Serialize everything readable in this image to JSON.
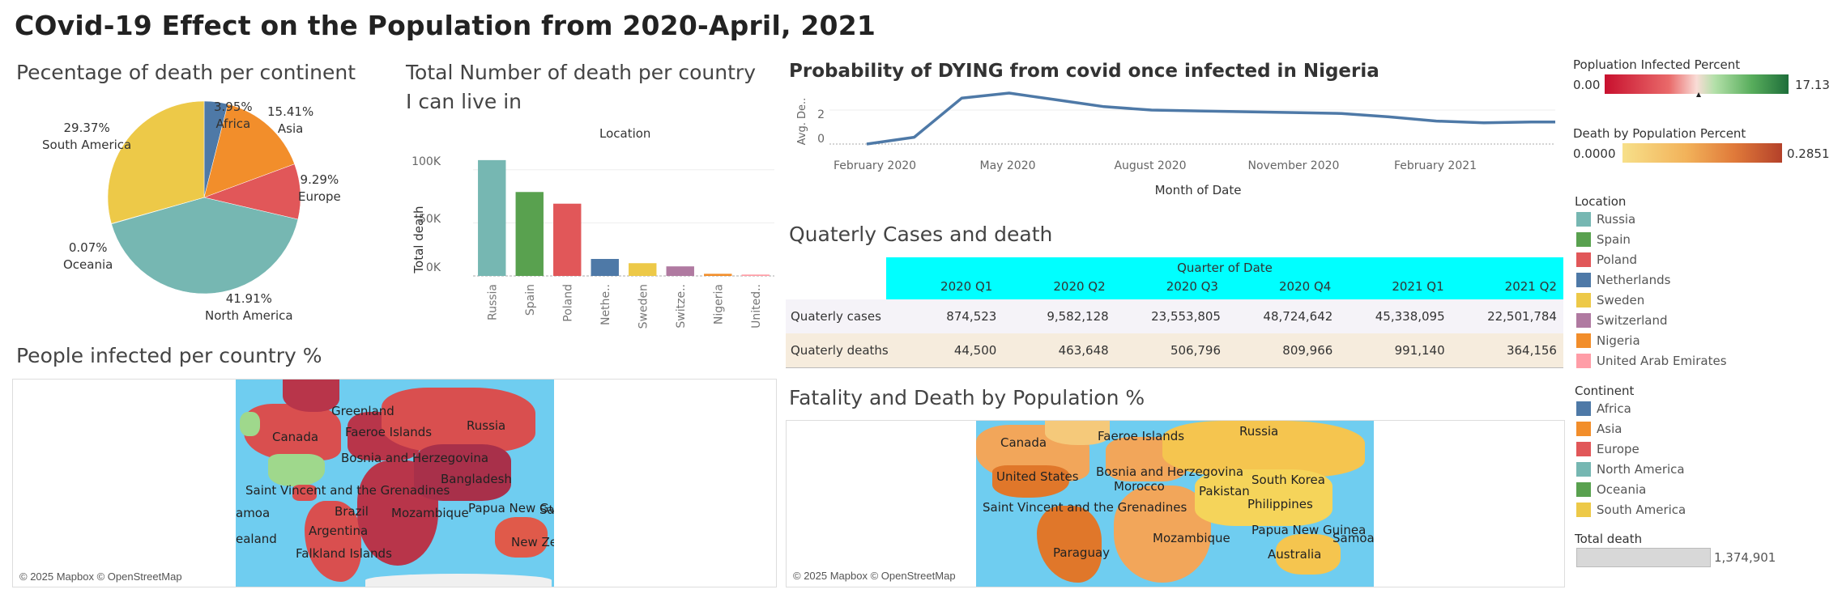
{
  "main_title": "COvid-19 Effect on the Population from 2020-April, 2021",
  "pie": {
    "title": "Pecentage of death per continent",
    "slices": [
      {
        "name": "Africa",
        "value": 3.95,
        "label": "3.95%",
        "color": "#4e79a7"
      },
      {
        "name": "Asia",
        "value": 15.41,
        "label": "15.41%",
        "color": "#f28e2b"
      },
      {
        "name": "Europe",
        "value": 9.29,
        "label": "9.29%",
        "color": "#e15759"
      },
      {
        "name": "North America",
        "value": 41.91,
        "label": "41.91%",
        "color": "#76b7b2"
      },
      {
        "name": "Oceania",
        "value": 0.07,
        "label": "0.07%",
        "color": "#59a14f"
      },
      {
        "name": "South America",
        "value": 29.37,
        "label": "29.37%",
        "color": "#edc948"
      }
    ]
  },
  "bar": {
    "title": "Total Number of death per country I can live in",
    "header": "Location",
    "ylabel": "Total death",
    "yticks": [
      "100K",
      "50K",
      "0K"
    ]
  },
  "line": {
    "title": "Probability of DYING from covid once infected in Nigeria",
    "ylabel": "Avg. De..",
    "xlabel": "Month of Date",
    "yticks": [
      "2",
      "0"
    ],
    "xticks": [
      "February 2020",
      "May 2020",
      "August 2020",
      "November 2020",
      "February 2021"
    ]
  },
  "table": {
    "title": "Quaterly Cases and death",
    "header": "Quarter of Date",
    "columns": [
      "2020 Q1",
      "2020 Q2",
      "2020 Q3",
      "2020 Q4",
      "2021 Q1",
      "2021 Q2"
    ],
    "rows": [
      {
        "label": "Quaterly cases",
        "values": [
          "874,523",
          "9,582,128",
          "23,553,805",
          "48,724,642",
          "45,338,095",
          "22,501,784"
        ]
      },
      {
        "label": "Quaterly deaths",
        "values": [
          "44,500",
          "463,648",
          "506,796",
          "809,966",
          "991,140",
          "364,156"
        ]
      }
    ]
  },
  "map1": {
    "title": "People infected per country %",
    "credit": "© 2025 Mapbox © OpenStreetMap",
    "labels": [
      "Greenland",
      "Canada",
      "Faeroe Islands",
      "Russia",
      "Bosnia and Herzegovina",
      "Bangladesh",
      "Saint Vincent and the Grenadines",
      "amoa",
      "Brazil",
      "Mozambique",
      "Papua New Gui",
      "Sa",
      "Argentina",
      "ealand",
      "Falkland Islands",
      "New Ze"
    ]
  },
  "map2": {
    "title": "Fatality and Death by Population %",
    "credit": "© 2025 Mapbox © OpenStreetMap",
    "labels": [
      "Faeroe Islands",
      "Russia",
      "Canada",
      "United States",
      "Bosnia and Herzegovina",
      "Morocco",
      "South Korea",
      "Pakistan",
      "Philippines",
      "Saint Vincent and the Grenadines",
      "Papua New Guinea",
      "Samoa",
      "Mozambique",
      "Paraguay",
      "Australia"
    ]
  },
  "legends": {
    "infected_title": "Popluation Infected Percent",
    "infected_min": "0.00",
    "infected_max": "17.13",
    "death_title": "Death by Population Percent",
    "death_min": "0.0000",
    "death_max": "0.2851",
    "location_title": "Location",
    "locations": [
      {
        "name": "Russia",
        "color": "#76b7b2"
      },
      {
        "name": "Spain",
        "color": "#59a14f"
      },
      {
        "name": "Poland",
        "color": "#e15759"
      },
      {
        "name": "Netherlands",
        "color": "#4e79a7"
      },
      {
        "name": "Sweden",
        "color": "#edc948"
      },
      {
        "name": "Switzerland",
        "color": "#b07aa1"
      },
      {
        "name": "Nigeria",
        "color": "#f28e2b"
      },
      {
        "name": "United Arab Emirates",
        "color": "#ff9da7"
      }
    ],
    "continent_title": "Continent",
    "continents": [
      {
        "name": "Africa",
        "color": "#4e79a7"
      },
      {
        "name": "Asia",
        "color": "#f28e2b"
      },
      {
        "name": "Europe",
        "color": "#e15759"
      },
      {
        "name": "North America",
        "color": "#76b7b2"
      },
      {
        "name": "Oceania",
        "color": "#59a14f"
      },
      {
        "name": "South America",
        "color": "#edc948"
      }
    ],
    "total_death_title": "Total death",
    "total_death_value": "1,374,901"
  },
  "chart_data": [
    {
      "type": "pie",
      "title": "Pecentage of death per continent",
      "categories": [
        "Africa",
        "Asia",
        "Europe",
        "North America",
        "Oceania",
        "South America"
      ],
      "values": [
        3.95,
        15.41,
        9.29,
        41.91,
        0.07,
        29.37
      ]
    },
    {
      "type": "bar",
      "title": "Total Number of death per country I can live in",
      "xlabel": "Location",
      "ylabel": "Total death",
      "categories": [
        "Russia",
        "Spain",
        "Poland",
        "Nethe..",
        "Sweden",
        "Switze..",
        "Nigeria",
        "United.."
      ],
      "values": [
        109000,
        79000,
        68000,
        16000,
        12000,
        9000,
        2000,
        1300
      ],
      "colors": [
        "#76b7b2",
        "#59a14f",
        "#e15759",
        "#4e79a7",
        "#edc948",
        "#b07aa1",
        "#f28e2b",
        "#ff9da7"
      ],
      "ylim": [
        0,
        115000
      ]
    },
    {
      "type": "line",
      "title": "Probability of DYING from covid once infected in Nigeria",
      "xlabel": "Month of Date",
      "ylabel": "Avg. De..",
      "x": [
        "2020-01",
        "2020-02",
        "2020-03",
        "2020-04",
        "2020-05",
        "2020-06",
        "2020-07",
        "2020-08",
        "2020-09",
        "2020-10",
        "2020-11",
        "2020-12",
        "2021-01",
        "2021-02",
        "2021-03",
        "2021-04"
      ],
      "y": [
        0.0,
        0.4,
        2.7,
        3.0,
        2.6,
        2.2,
        2.0,
        1.95,
        1.9,
        1.85,
        1.8,
        1.6,
        1.35,
        1.25,
        1.3,
        1.3
      ],
      "ylim": [
        0,
        3.3
      ]
    }
  ]
}
